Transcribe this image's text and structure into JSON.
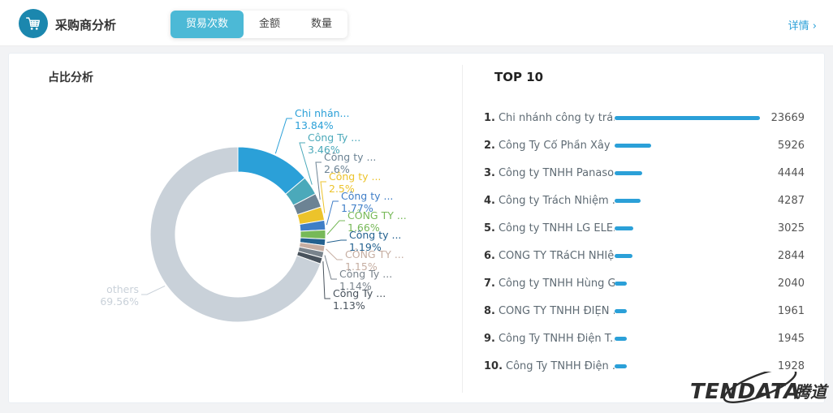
{
  "header": {
    "title": "采购商分析",
    "tabs": [
      {
        "label": "贸易次数",
        "active": true
      },
      {
        "label": "金额",
        "active": false
      },
      {
        "label": "数量",
        "active": false
      }
    ],
    "detail_link": "详情 ›"
  },
  "left_panel": {
    "title": "占比分析"
  },
  "right_panel": {
    "title": "TOP 10",
    "max_value": 23669,
    "items": [
      {
        "rank": "1.",
        "name": "Chi nhánh công ty trá...",
        "value": 23669
      },
      {
        "rank": "2.",
        "name": "Công Ty Cổ Phần Xây ...",
        "value": 5926
      },
      {
        "rank": "3.",
        "name": "Công ty TNHH Panaso...",
        "value": 4444
      },
      {
        "rank": "4.",
        "name": "Công ty Trách Nhiệm ...",
        "value": 4287
      },
      {
        "rank": "5.",
        "name": "Công ty TNHH LG ELE...",
        "value": 3025
      },
      {
        "rank": "6.",
        "name": "CÔNG TY TRáCH NHIệ...",
        "value": 2844
      },
      {
        "rank": "7.",
        "name": "Công ty TNHH Hùng Gia",
        "value": 2040
      },
      {
        "rank": "8.",
        "name": "CÔNG TY TNHH ĐIỆN ...",
        "value": 1961
      },
      {
        "rank": "9.",
        "name": "Công Ty TNHH Điện T...",
        "value": 1945
      },
      {
        "rank": "10.",
        "name": "Công Ty TNHH Điện ...",
        "value": 1928
      }
    ]
  },
  "chart_data": {
    "type": "pie",
    "donut": true,
    "title": "占比分析",
    "slices": [
      {
        "label": "Chi nhán...",
        "pct": 13.84,
        "pct_label": "13.84%",
        "color": "#2ba0d8"
      },
      {
        "label": "Công Ty ...",
        "pct": 3.46,
        "pct_label": "3.46%",
        "color": "#4ba9ba"
      },
      {
        "label": "Công ty ...",
        "pct": 2.6,
        "pct_label": "2.6%",
        "color": "#6c8394"
      },
      {
        "label": "Công ty ...",
        "pct": 2.5,
        "pct_label": "2.5%",
        "color": "#ecc32b"
      },
      {
        "label": "Công ty ...",
        "pct": 1.77,
        "pct_label": "1.77%",
        "color": "#3f7ec7"
      },
      {
        "label": "CÔNG TY ...",
        "pct": 1.66,
        "pct_label": "1.66%",
        "color": "#77b958"
      },
      {
        "label": "Công ty ...",
        "pct": 1.19,
        "pct_label": "1.19%",
        "color": "#23618f"
      },
      {
        "label": "CÔNG TY ...",
        "pct": 1.15,
        "pct_label": "1.15%",
        "color": "#c6aea2"
      },
      {
        "label": "Công Ty ...",
        "pct": 1.14,
        "pct_label": "1.14%",
        "color": "#79838c"
      },
      {
        "label": "Công Ty ...",
        "pct": 1.13,
        "pct_label": "1.13%",
        "color": "#49535d"
      },
      {
        "label": "others",
        "pct": 69.56,
        "pct_label": "69.56%",
        "color": "#c9d1d9",
        "is_others": true
      }
    ]
  },
  "logo": {
    "text": "TENDATA",
    "suffix": "腾道"
  },
  "colors": {
    "accent": "#2ba0d8",
    "tab_active_bg": "#4cb9d6",
    "icon_bg": "#1b87ae",
    "bar": "#2ba0d8",
    "others_gray": "#c9d1d9"
  }
}
